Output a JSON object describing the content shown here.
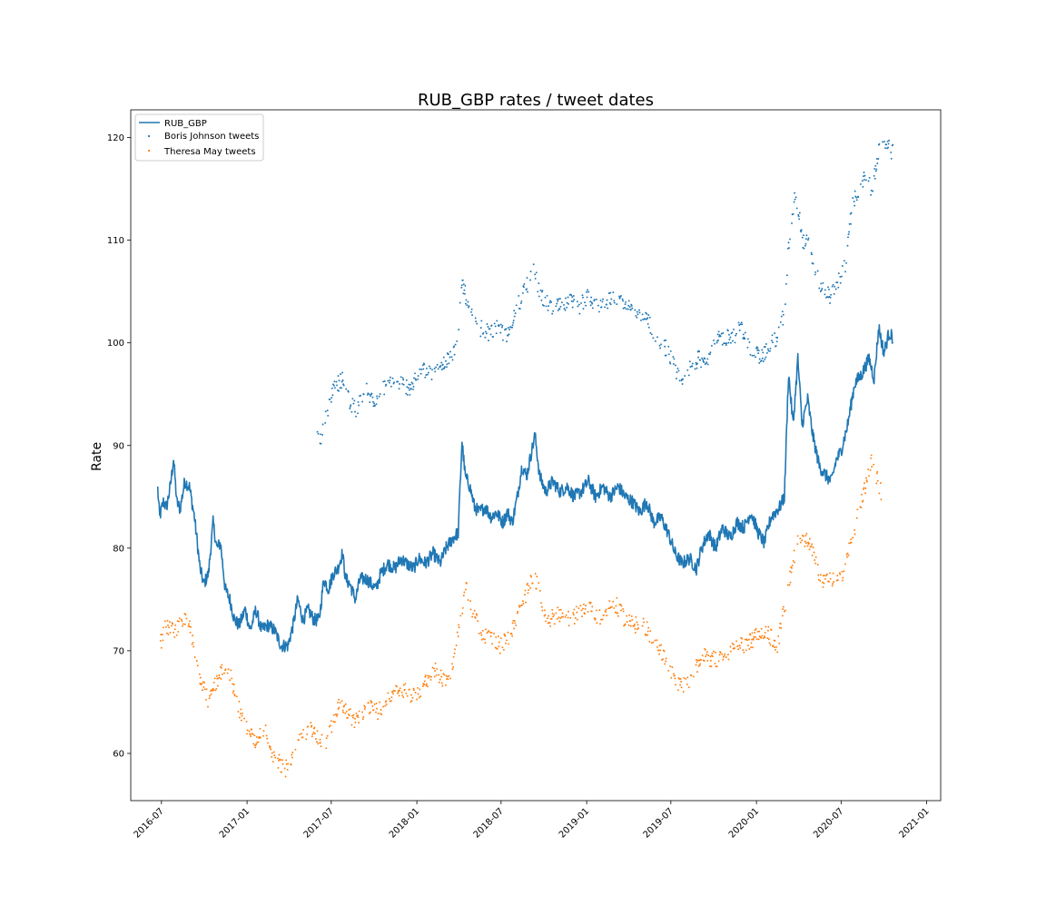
{
  "chart_data": {
    "type": "line",
    "title": "RUB_GBP rates / tweet dates",
    "xlabel": "",
    "ylabel": "Rate",
    "xlim": [
      "2016-04-26",
      "2021-01-31"
    ],
    "ylim": [
      55.4,
      122.7
    ],
    "x_ticks": [
      "2016-07",
      "2017-01",
      "2017-07",
      "2018-01",
      "2018-07",
      "2019-01",
      "2019-07",
      "2020-01",
      "2020-07",
      "2021-01"
    ],
    "y_ticks": [
      60,
      70,
      80,
      90,
      100,
      110,
      120
    ],
    "grid": false,
    "legend": {
      "position": "top-left",
      "entries": [
        "RUB_GBP",
        "Boris Johnson tweets",
        "Theresa May tweets"
      ]
    },
    "colors": {
      "rate": "#1f77b4",
      "boris": "#1f77b4",
      "theresa": "#ff7f0e"
    },
    "series": [
      {
        "name": "RUB_GBP",
        "kind": "line",
        "anchors": [
          [
            "2016-06-23",
            85.8
          ],
          [
            "2016-06-27",
            83.0
          ],
          [
            "2016-07-05",
            84.5
          ],
          [
            "2016-07-12",
            84.0
          ],
          [
            "2016-07-20",
            86.0
          ],
          [
            "2016-07-27",
            88.7
          ],
          [
            "2016-08-03",
            84.5
          ],
          [
            "2016-08-10",
            83.8
          ],
          [
            "2016-08-20",
            86.5
          ],
          [
            "2016-08-30",
            86.0
          ],
          [
            "2016-09-10",
            83.0
          ],
          [
            "2016-09-22",
            78.0
          ],
          [
            "2016-09-30",
            76.5
          ],
          [
            "2016-10-10",
            77.5
          ],
          [
            "2016-10-20",
            82.5
          ],
          [
            "2016-10-28",
            80.0
          ],
          [
            "2016-11-05",
            80.5
          ],
          [
            "2016-11-15",
            76.0
          ],
          [
            "2016-11-25",
            75.0
          ],
          [
            "2016-12-05",
            73.0
          ],
          [
            "2016-12-15",
            72.5
          ],
          [
            "2016-12-28",
            74.0
          ],
          [
            "2017-01-08",
            72.0
          ],
          [
            "2017-01-20",
            74.0
          ],
          [
            "2017-02-01",
            72.0
          ],
          [
            "2017-02-15",
            72.5
          ],
          [
            "2017-03-01",
            72.0
          ],
          [
            "2017-03-15",
            70.5
          ],
          [
            "2017-03-30",
            70.5
          ],
          [
            "2017-04-10",
            72.5
          ],
          [
            "2017-04-20",
            75.0
          ],
          [
            "2017-05-01",
            73.0
          ],
          [
            "2017-05-12",
            74.0
          ],
          [
            "2017-05-25",
            73.0
          ],
          [
            "2017-06-05",
            73.0
          ],
          [
            "2017-06-15",
            77.0
          ],
          [
            "2017-06-25",
            76.0
          ],
          [
            "2017-07-05",
            77.5
          ],
          [
            "2017-07-15",
            78.0
          ],
          [
            "2017-07-25",
            79.5
          ],
          [
            "2017-08-01",
            77.0
          ],
          [
            "2017-08-10",
            76.5
          ],
          [
            "2017-08-22",
            75.0
          ],
          [
            "2017-09-01",
            77.0
          ],
          [
            "2017-09-15",
            77.0
          ],
          [
            "2017-09-25",
            76.5
          ],
          [
            "2017-10-05",
            76.0
          ],
          [
            "2017-10-15",
            77.5
          ],
          [
            "2017-10-30",
            78.5
          ],
          [
            "2017-11-15",
            78.0
          ],
          [
            "2017-11-28",
            79.0
          ],
          [
            "2017-12-10",
            78.5
          ],
          [
            "2017-12-25",
            78.0
          ],
          [
            "2018-01-05",
            79.0
          ],
          [
            "2018-01-20",
            78.5
          ],
          [
            "2018-02-05",
            79.5
          ],
          [
            "2018-02-20",
            78.5
          ],
          [
            "2018-03-05",
            80.0
          ],
          [
            "2018-03-20",
            81.0
          ],
          [
            "2018-03-31",
            81.5
          ],
          [
            "2018-04-08",
            90.5
          ],
          [
            "2018-04-15",
            87.0
          ],
          [
            "2018-04-25",
            86.0
          ],
          [
            "2018-05-05",
            84.0
          ],
          [
            "2018-05-15",
            83.5
          ],
          [
            "2018-05-28",
            84.0
          ],
          [
            "2018-06-10",
            83.0
          ],
          [
            "2018-06-20",
            83.5
          ],
          [
            "2018-07-05",
            82.5
          ],
          [
            "2018-07-15",
            83.5
          ],
          [
            "2018-07-25",
            82.5
          ],
          [
            "2018-08-05",
            85.0
          ],
          [
            "2018-08-15",
            88.0
          ],
          [
            "2018-08-25",
            87.0
          ],
          [
            "2018-09-05",
            89.5
          ],
          [
            "2018-09-12",
            91.0
          ],
          [
            "2018-09-22",
            87.0
          ],
          [
            "2018-10-05",
            85.5
          ],
          [
            "2018-10-20",
            86.5
          ],
          [
            "2018-11-05",
            85.5
          ],
          [
            "2018-11-20",
            86.0
          ],
          [
            "2018-12-05",
            85.0
          ],
          [
            "2018-12-20",
            85.5
          ],
          [
            "2019-01-05",
            86.5
          ],
          [
            "2019-01-20",
            85.0
          ],
          [
            "2019-02-05",
            86.0
          ],
          [
            "2019-02-20",
            85.0
          ],
          [
            "2019-03-10",
            86.0
          ],
          [
            "2019-03-25",
            85.0
          ],
          [
            "2019-04-10",
            84.5
          ],
          [
            "2019-04-25",
            83.5
          ],
          [
            "2019-05-10",
            84.5
          ],
          [
            "2019-05-25",
            82.5
          ],
          [
            "2019-06-10",
            83.0
          ],
          [
            "2019-06-25",
            81.5
          ],
          [
            "2019-07-10",
            79.5
          ],
          [
            "2019-07-25",
            78.5
          ],
          [
            "2019-08-10",
            79.0
          ],
          [
            "2019-08-25",
            78.0
          ],
          [
            "2019-09-05",
            80.0
          ],
          [
            "2019-09-20",
            81.5
          ],
          [
            "2019-10-05",
            80.0
          ],
          [
            "2019-10-20",
            82.0
          ],
          [
            "2019-11-05",
            81.0
          ],
          [
            "2019-11-20",
            82.5
          ],
          [
            "2019-12-05",
            82.0
          ],
          [
            "2019-12-20",
            83.5
          ],
          [
            "2020-01-05",
            81.5
          ],
          [
            "2020-01-18",
            80.5
          ],
          [
            "2020-02-01",
            83.0
          ],
          [
            "2020-02-20",
            84.0
          ],
          [
            "2020-03-01",
            85.0
          ],
          [
            "2020-03-10",
            97.0
          ],
          [
            "2020-03-20",
            92.0
          ],
          [
            "2020-03-30",
            98.5
          ],
          [
            "2020-04-08",
            92.0
          ],
          [
            "2020-04-20",
            94.5
          ],
          [
            "2020-05-01",
            91.0
          ],
          [
            "2020-05-15",
            88.0
          ],
          [
            "2020-05-30",
            87.0
          ],
          [
            "2020-06-10",
            86.5
          ],
          [
            "2020-06-20",
            88.5
          ],
          [
            "2020-07-01",
            89.5
          ],
          [
            "2020-07-15",
            92.0
          ],
          [
            "2020-07-30",
            96.0
          ],
          [
            "2020-08-15",
            97.0
          ],
          [
            "2020-08-30",
            98.5
          ],
          [
            "2020-09-10",
            96.5
          ],
          [
            "2020-09-20",
            101.5
          ],
          [
            "2020-10-01",
            99.0
          ],
          [
            "2020-10-12",
            101.0
          ],
          [
            "2020-10-20",
            100.5
          ]
        ]
      },
      {
        "name": "Boris Johnson tweets",
        "kind": "scatter",
        "anchors": [
          [
            "2017-05-28",
            91.0
          ],
          [
            "2017-06-08",
            90.5
          ],
          [
            "2017-06-20",
            93.0
          ],
          [
            "2017-07-05",
            95.5
          ],
          [
            "2017-07-25",
            96.5
          ],
          [
            "2017-08-10",
            94.0
          ],
          [
            "2017-08-25",
            93.5
          ],
          [
            "2017-09-10",
            95.5
          ],
          [
            "2017-09-30",
            94.5
          ],
          [
            "2017-10-20",
            95.5
          ],
          [
            "2017-11-10",
            96.5
          ],
          [
            "2017-12-01",
            96.0
          ],
          [
            "2017-12-20",
            95.5
          ],
          [
            "2018-01-10",
            97.5
          ],
          [
            "2018-02-01",
            97.0
          ],
          [
            "2018-02-20",
            97.5
          ],
          [
            "2018-03-10",
            98.5
          ],
          [
            "2018-03-30",
            99.5
          ],
          [
            "2018-04-08",
            106.0
          ],
          [
            "2018-04-25",
            103.0
          ],
          [
            "2018-05-15",
            101.5
          ],
          [
            "2018-06-05",
            101.0
          ],
          [
            "2018-06-25",
            101.5
          ],
          [
            "2018-07-15",
            100.5
          ],
          [
            "2018-08-05",
            103.5
          ],
          [
            "2018-08-20",
            105.0
          ],
          [
            "2018-09-10",
            107.0
          ],
          [
            "2018-09-25",
            104.5
          ],
          [
            "2018-10-15",
            103.5
          ],
          [
            "2018-11-05",
            103.5
          ],
          [
            "2018-11-25",
            104.0
          ],
          [
            "2018-12-15",
            103.5
          ],
          [
            "2019-01-05",
            104.5
          ],
          [
            "2019-01-25",
            103.5
          ],
          [
            "2019-02-15",
            104.0
          ],
          [
            "2019-03-10",
            104.5
          ],
          [
            "2019-03-30",
            103.5
          ],
          [
            "2019-04-20",
            102.5
          ],
          [
            "2019-05-10",
            102.5
          ],
          [
            "2019-05-30",
            100.5
          ],
          [
            "2019-06-20",
            99.5
          ],
          [
            "2019-07-10",
            97.5
          ],
          [
            "2019-07-25",
            96.0
          ],
          [
            "2019-08-10",
            97.5
          ],
          [
            "2019-08-30",
            98.5
          ],
          [
            "2019-09-15",
            98.0
          ],
          [
            "2019-09-30",
            100.0
          ],
          [
            "2019-10-20",
            100.5
          ],
          [
            "2019-11-10",
            100.5
          ],
          [
            "2019-11-30",
            101.5
          ],
          [
            "2019-12-20",
            99.5
          ],
          [
            "2020-01-10",
            98.5
          ],
          [
            "2020-01-25",
            99.5
          ],
          [
            "2020-02-15",
            100.5
          ],
          [
            "2020-03-01",
            103.0
          ],
          [
            "2020-03-12",
            110.5
          ],
          [
            "2020-03-25",
            114.5
          ],
          [
            "2020-04-10",
            110.0
          ],
          [
            "2020-04-25",
            109.5
          ],
          [
            "2020-05-10",
            106.5
          ],
          [
            "2020-05-25",
            105.0
          ],
          [
            "2020-06-10",
            104.5
          ],
          [
            "2020-06-25",
            106.0
          ],
          [
            "2020-07-10",
            107.5
          ],
          [
            "2020-07-25",
            113.5
          ],
          [
            "2020-08-05",
            114.5
          ],
          [
            "2020-08-20",
            116.0
          ],
          [
            "2020-09-05",
            115.0
          ],
          [
            "2020-09-20",
            118.5
          ],
          [
            "2020-10-01",
            119.5
          ],
          [
            "2020-10-20",
            118.5
          ]
        ]
      },
      {
        "name": "Theresa May tweets",
        "kind": "scatter",
        "anchors": [
          [
            "2016-06-25",
            72.5
          ],
          [
            "2016-07-01",
            71.0
          ],
          [
            "2016-07-10",
            72.3
          ],
          [
            "2016-08-01",
            72.0
          ],
          [
            "2016-08-25",
            73.5
          ],
          [
            "2016-09-20",
            67.5
          ],
          [
            "2016-10-10",
            65.0
          ],
          [
            "2016-11-01",
            67.5
          ],
          [
            "2016-11-20",
            68.5
          ],
          [
            "2016-12-20",
            63.5
          ],
          [
            "2017-01-20",
            61.0
          ],
          [
            "2017-02-10",
            62.5
          ],
          [
            "2017-03-01",
            59.5
          ],
          [
            "2017-03-25",
            58.5
          ],
          [
            "2017-04-15",
            60.5
          ],
          [
            "2017-05-01",
            62.0
          ],
          [
            "2017-05-20",
            62.5
          ],
          [
            "2017-06-05",
            61.5
          ],
          [
            "2017-06-20",
            61.0
          ],
          [
            "2017-07-20",
            65.0
          ],
          [
            "2017-08-20",
            63.0
          ],
          [
            "2017-09-20",
            64.5
          ],
          [
            "2017-10-10",
            64.0
          ],
          [
            "2017-10-30",
            65.5
          ],
          [
            "2017-11-20",
            66.5
          ],
          [
            "2017-12-10",
            66.0
          ],
          [
            "2017-12-30",
            65.5
          ],
          [
            "2018-01-20",
            67.0
          ],
          [
            "2018-02-10",
            68.0
          ],
          [
            "2018-02-28",
            67.0
          ],
          [
            "2018-03-20",
            68.5
          ],
          [
            "2018-04-05",
            73.0
          ],
          [
            "2018-04-15",
            76.5
          ],
          [
            "2018-04-30",
            74.0
          ],
          [
            "2018-05-20",
            71.5
          ],
          [
            "2018-06-10",
            71.5
          ],
          [
            "2018-06-30",
            70.5
          ],
          [
            "2018-07-20",
            71.5
          ],
          [
            "2018-08-10",
            74.0
          ],
          [
            "2018-08-25",
            75.5
          ],
          [
            "2018-09-10",
            77.5
          ],
          [
            "2018-09-25",
            75.0
          ],
          [
            "2018-10-10",
            73.0
          ],
          [
            "2018-10-30",
            73.5
          ],
          [
            "2018-11-20",
            73.0
          ],
          [
            "2018-12-10",
            73.5
          ],
          [
            "2019-01-05",
            74.5
          ],
          [
            "2019-01-25",
            73.0
          ],
          [
            "2019-02-15",
            74.0
          ],
          [
            "2019-03-05",
            74.5
          ],
          [
            "2019-03-25",
            73.0
          ],
          [
            "2019-04-15",
            72.5
          ],
          [
            "2019-05-05",
            72.5
          ],
          [
            "2019-05-25",
            71.0
          ],
          [
            "2019-06-15",
            69.5
          ],
          [
            "2019-07-01",
            68.0
          ],
          [
            "2019-07-20",
            66.5
          ],
          [
            "2019-08-10",
            67.0
          ],
          [
            "2019-09-05",
            69.5
          ],
          [
            "2019-10-10",
            69.0
          ],
          [
            "2019-11-15",
            70.5
          ],
          [
            "2019-12-05",
            70.5
          ],
          [
            "2020-01-20",
            72.0
          ],
          [
            "2020-02-15",
            70.5
          ],
          [
            "2020-04-01",
            81.5
          ],
          [
            "2020-04-25",
            80.5
          ],
          [
            "2020-05-20",
            76.5
          ],
          [
            "2020-07-05",
            77.5
          ],
          [
            "2020-09-05",
            88.5
          ],
          [
            "2020-09-25",
            85.5
          ]
        ]
      }
    ]
  }
}
